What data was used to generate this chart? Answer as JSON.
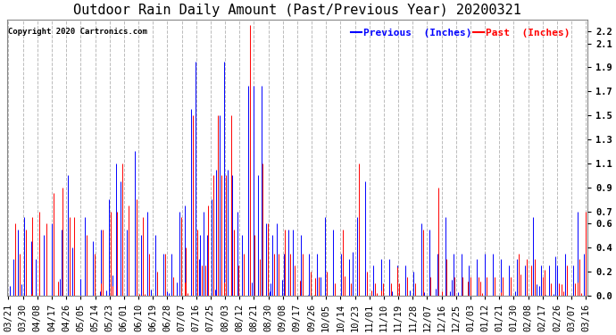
{
  "title": "Outdoor Rain Daily Amount (Past/Previous Year) 20200321",
  "copyright": "Copyright 2020 Cartronics.com",
  "legend_previous": "Previous  (Inches)",
  "legend_past": "Past  (Inches)",
  "color_previous": "#0000ff",
  "color_past": "#ff0000",
  "background_color": "#ffffff",
  "grid_color": "#bbbbbb",
  "title_fontsize": 11,
  "tick_fontsize": 7.5,
  "x_labels": [
    "03/21",
    "03/30",
    "04/08",
    "04/17",
    "04/26",
    "05/05",
    "05/14",
    "05/23",
    "06/01",
    "06/10",
    "06/19",
    "06/28",
    "07/07",
    "07/16",
    "07/25",
    "08/03",
    "08/12",
    "08/21",
    "08/30",
    "09/08",
    "09/17",
    "09/26",
    "10/05",
    "10/14",
    "10/23",
    "11/01",
    "11/10",
    "11/19",
    "11/28",
    "12/07",
    "12/16",
    "12/25",
    "01/03",
    "01/12",
    "01/21",
    "01/30",
    "02/08",
    "02/17",
    "02/26",
    "03/07",
    "03/16"
  ],
  "ytick_vals": [
    0.0,
    0.2,
    0.4,
    0.6,
    0.7,
    0.9,
    1.1,
    1.3,
    1.5,
    1.7,
    1.9,
    2.1,
    2.2
  ],
  "ylim_max": 2.3,
  "n_days": 362,
  "lw": 0.7
}
